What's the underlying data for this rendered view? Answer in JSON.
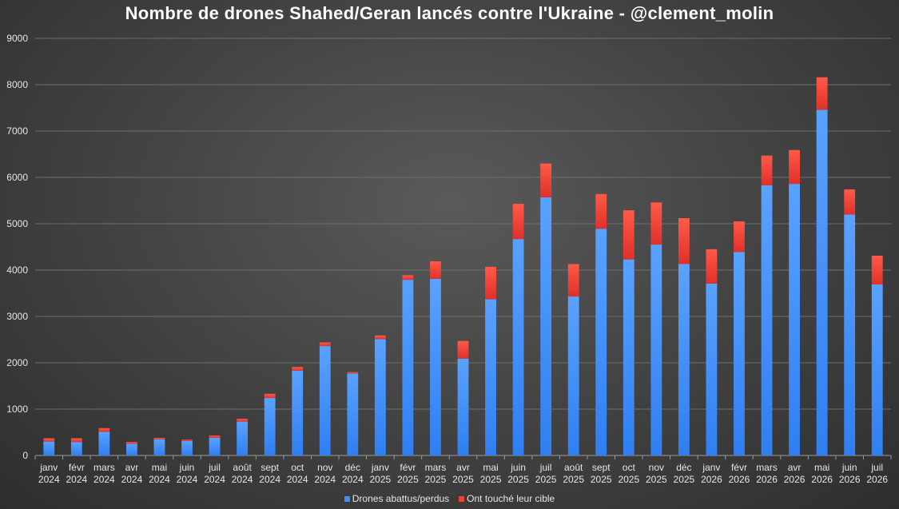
{
  "chart_data": {
    "type": "bar",
    "stacked": true,
    "title": "Nombre de drones Shahed/Geran lancés contre l'Ukraine - @clement_molin",
    "xlabel": "",
    "ylabel": "",
    "ylim": [
      0,
      9000
    ],
    "yticks": [
      0,
      1000,
      2000,
      3000,
      4000,
      5000,
      6000,
      7000,
      8000,
      9000
    ],
    "grid": true,
    "legend_position": "bottom",
    "categories": [
      [
        "janv",
        "2024"
      ],
      [
        "févr",
        "2024"
      ],
      [
        "mars",
        "2024"
      ],
      [
        "avr",
        "2024"
      ],
      [
        "mai",
        "2024"
      ],
      [
        "juin",
        "2024"
      ],
      [
        "juil",
        "2024"
      ],
      [
        "août",
        "2024"
      ],
      [
        "sept",
        "2024"
      ],
      [
        "oct",
        "2024"
      ],
      [
        "nov",
        "2024"
      ],
      [
        "déc",
        "2024"
      ],
      [
        "janv",
        "2025"
      ],
      [
        "févr",
        "2025"
      ],
      [
        "mars",
        "2025"
      ],
      [
        "avr",
        "2025"
      ],
      [
        "mai",
        "2025"
      ],
      [
        "juin",
        "2025"
      ],
      [
        "juil",
        "2025"
      ],
      [
        "août",
        "2025"
      ],
      [
        "sept",
        "2025"
      ],
      [
        "oct",
        "2025"
      ],
      [
        "nov",
        "2025"
      ],
      [
        "déc",
        "2025"
      ],
      [
        "janv",
        "2026"
      ],
      [
        "févr",
        "2026"
      ],
      [
        "mars",
        "2026"
      ],
      [
        "avr",
        "2026"
      ],
      [
        "mai",
        "2026"
      ],
      [
        "juin",
        "2026"
      ],
      [
        "juil",
        "2026"
      ]
    ],
    "series": [
      {
        "name": "Drones abattus/perdus",
        "color": "#3c8df8",
        "values": [
          300,
          290,
          510,
          250,
          350,
          310,
          380,
          730,
          1240,
          1830,
          2360,
          1770,
          2510,
          3790,
          3810,
          2090,
          3370,
          4670,
          5570,
          3430,
          4890,
          4230,
          4550,
          4130,
          3710,
          4390,
          5830,
          5860,
          7460,
          5200,
          3690
        ]
      },
      {
        "name": "Ont touché leur cible",
        "color": "#f03e30",
        "values": [
          70,
          80,
          80,
          40,
          30,
          30,
          50,
          60,
          90,
          80,
          80,
          30,
          80,
          100,
          380,
          380,
          700,
          760,
          730,
          700,
          750,
          1060,
          910,
          990,
          740,
          660,
          640,
          730,
          700,
          540,
          620
        ]
      }
    ]
  }
}
